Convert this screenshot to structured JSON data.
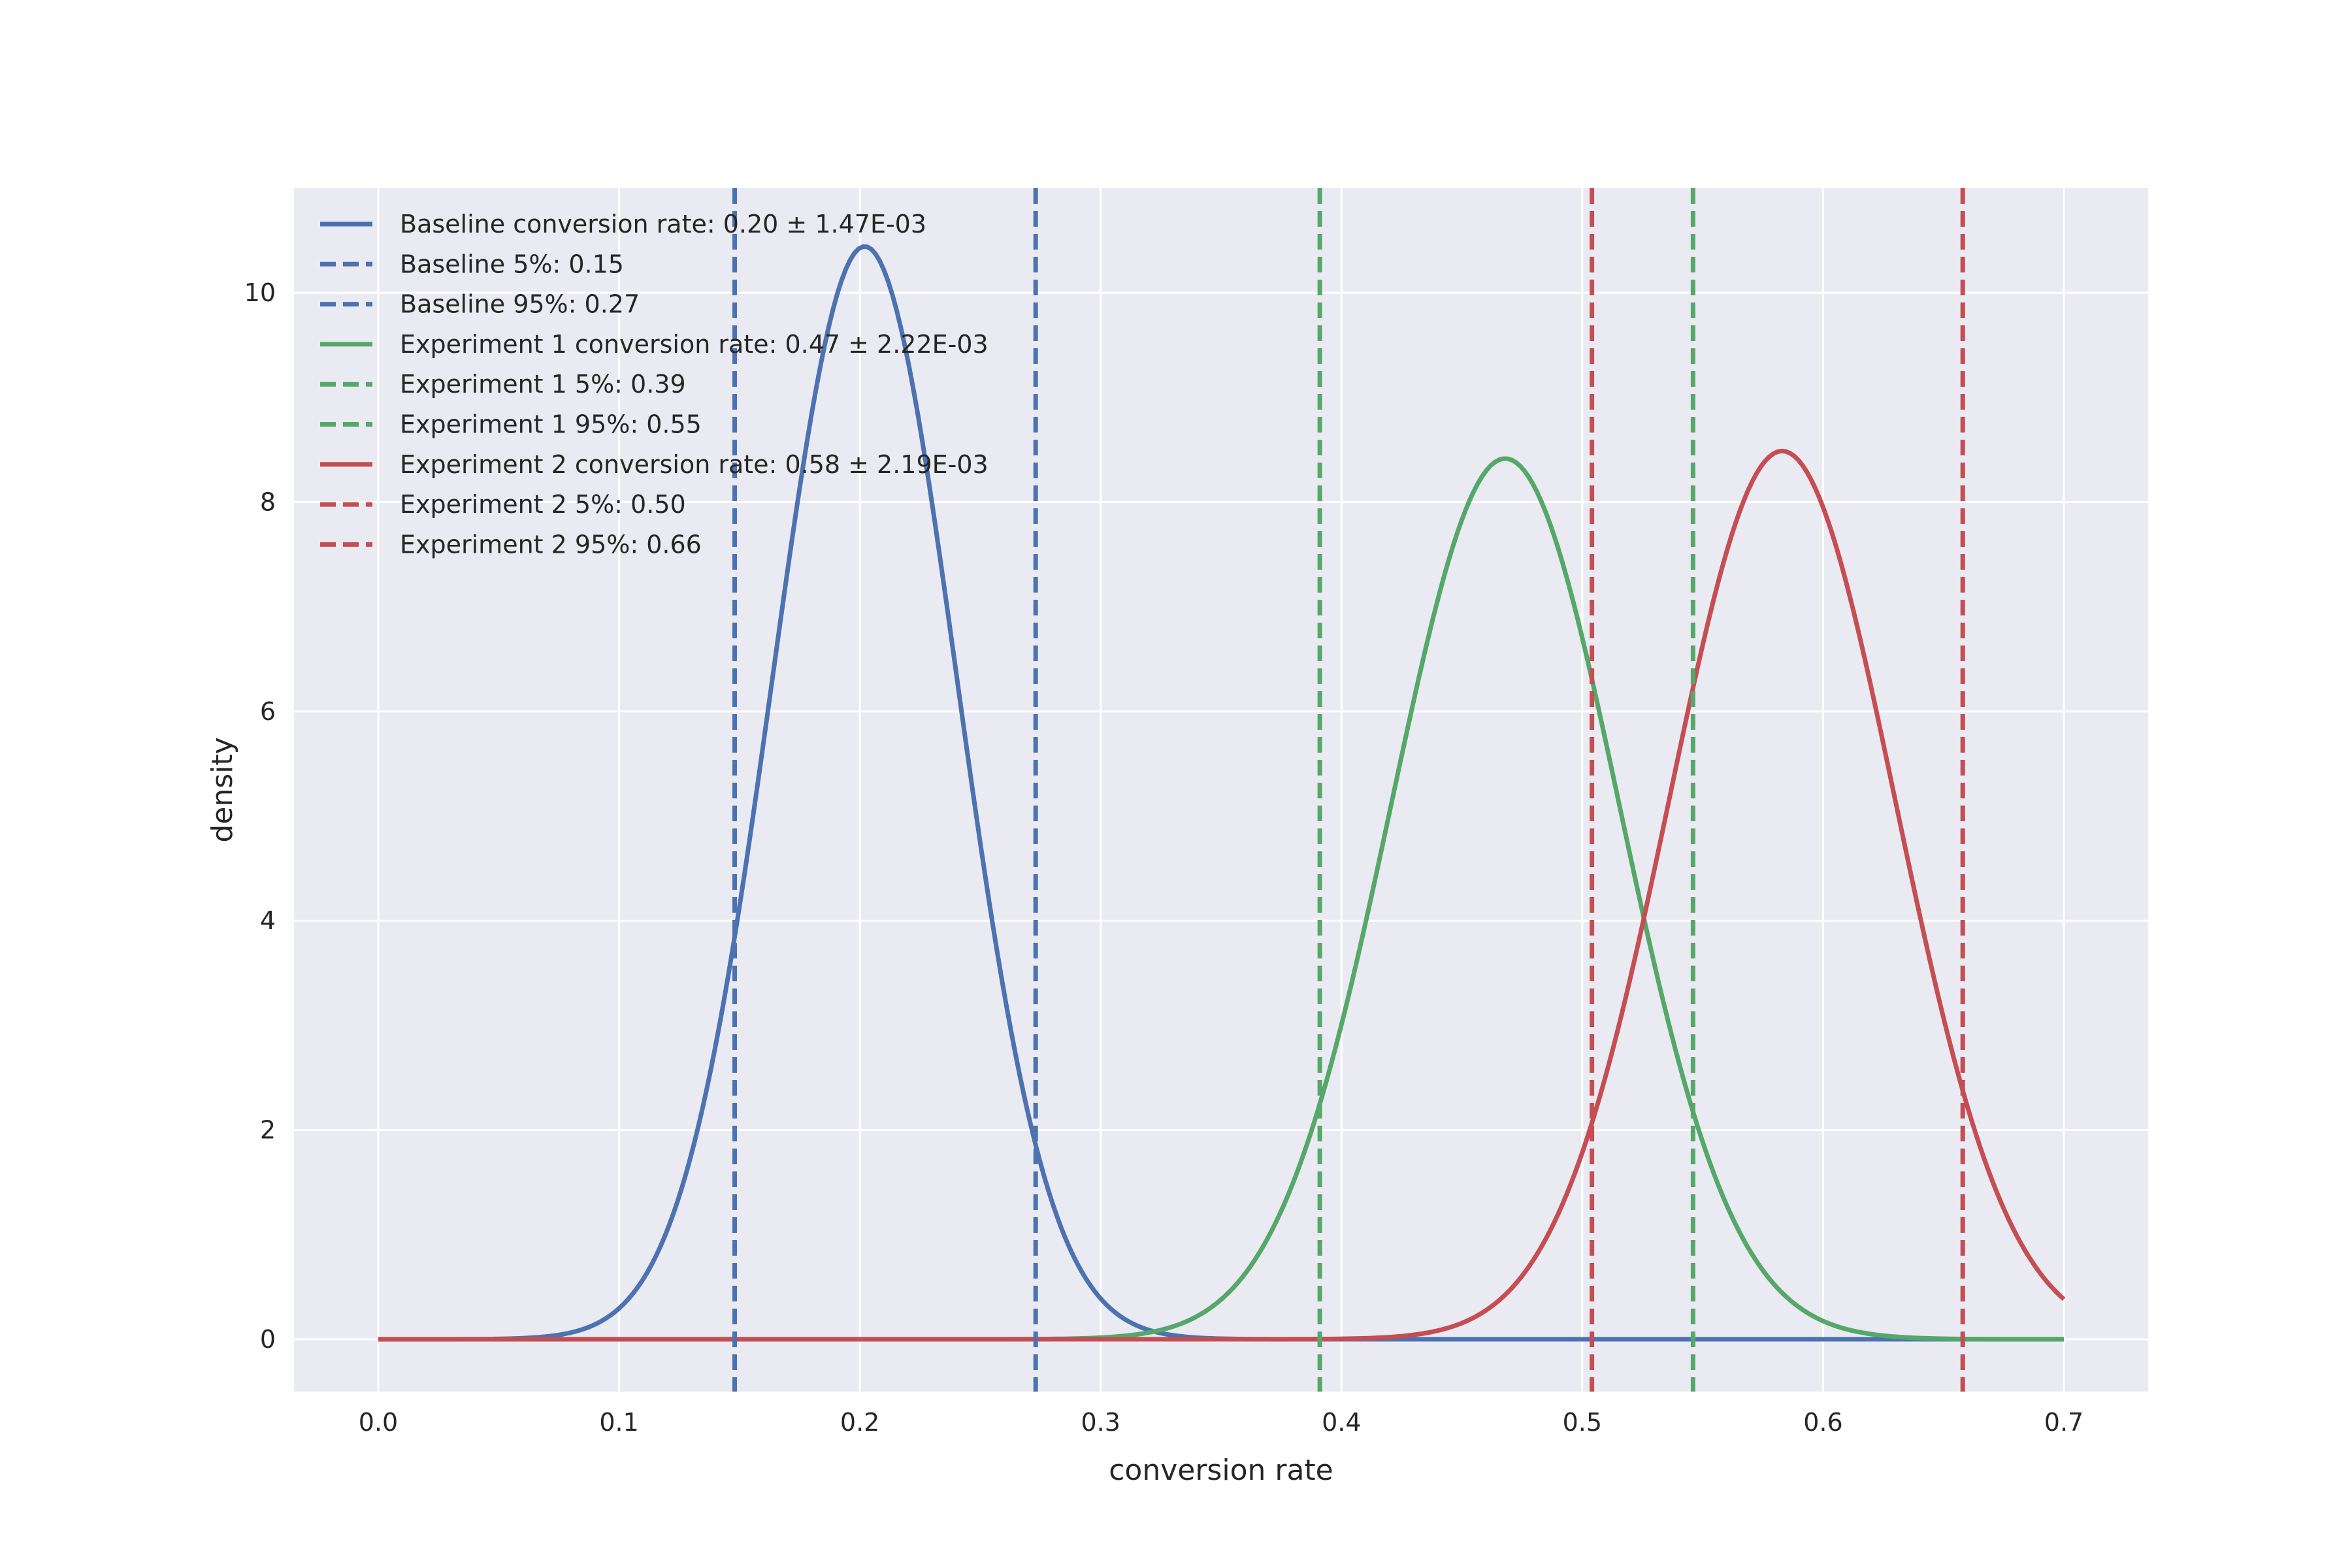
{
  "chart_data": {
    "type": "line",
    "title": "",
    "xlabel": "conversion rate",
    "ylabel": "density",
    "xlim": [
      -0.035,
      0.735
    ],
    "ylim": [
      -0.5,
      11.0
    ],
    "xticks": [
      0.0,
      0.1,
      0.2,
      0.3,
      0.4,
      0.5,
      0.6,
      0.7
    ],
    "xtick_labels": [
      "0.0",
      "0.1",
      "0.2",
      "0.3",
      "0.4",
      "0.5",
      "0.6",
      "0.7"
    ],
    "yticks": [
      0,
      2,
      4,
      6,
      8,
      10
    ],
    "ytick_labels": [
      "0",
      "2",
      "4",
      "6",
      "8",
      "10"
    ],
    "grid": true,
    "background": "#eaeaf2",
    "legend_position": "upper-left",
    "colors": {
      "baseline": "#4c72b0",
      "experiment1": "#55a868",
      "experiment2": "#c44e52"
    },
    "series": [
      {
        "name": "Baseline conversion rate: 0.20 ± 1.47E-03",
        "style": "solid",
        "color": "#4c72b0",
        "distribution": {
          "family": "normal",
          "mean": 0.202,
          "sd": 0.0382
        },
        "x_range": [
          0.0,
          0.7
        ]
      },
      {
        "name": "Experiment 1 conversion rate: 0.47 ± 2.22E-03",
        "style": "solid",
        "color": "#55a868",
        "distribution": {
          "family": "normal",
          "mean": 0.468,
          "sd": 0.0474
        },
        "x_range": [
          0.0,
          0.7
        ]
      },
      {
        "name": "Experiment 2 conversion rate: 0.58 ± 2.19E-03",
        "style": "solid",
        "color": "#c44e52",
        "distribution": {
          "family": "normal",
          "mean": 0.583,
          "sd": 0.047
        },
        "x_range": [
          0.0,
          0.7
        ]
      }
    ],
    "vlines": [
      {
        "name": "Baseline 5%: 0.15",
        "x": 0.148,
        "color": "#4c72b0"
      },
      {
        "name": "Baseline 95%: 0.27",
        "x": 0.273,
        "color": "#4c72b0"
      },
      {
        "name": "Experiment 1 5%: 0.39",
        "x": 0.391,
        "color": "#55a868"
      },
      {
        "name": "Experiment 1 95%: 0.55",
        "x": 0.546,
        "color": "#55a868"
      },
      {
        "name": "Experiment 2 5%: 0.50",
        "x": 0.504,
        "color": "#c44e52"
      },
      {
        "name": "Experiment 2 95%: 0.66",
        "x": 0.658,
        "color": "#c44e52"
      }
    ],
    "legend": [
      {
        "label": "Baseline conversion rate: 0.20 ± 1.47E-03",
        "style": "solid",
        "color": "#4c72b0"
      },
      {
        "label": "Baseline 5%: 0.15",
        "style": "dashed",
        "color": "#4c72b0"
      },
      {
        "label": "Baseline 95%: 0.27",
        "style": "dashed",
        "color": "#4c72b0"
      },
      {
        "label": "Experiment 1 conversion rate: 0.47 ± 2.22E-03",
        "style": "solid",
        "color": "#55a868"
      },
      {
        "label": "Experiment 1 5%: 0.39",
        "style": "dashed",
        "color": "#55a868"
      },
      {
        "label": "Experiment 1 95%: 0.55",
        "style": "dashed",
        "color": "#55a868"
      },
      {
        "label": "Experiment 2 conversion rate: 0.58 ± 2.19E-03",
        "style": "solid",
        "color": "#c44e52"
      },
      {
        "label": "Experiment 2 5%: 0.50",
        "style": "dashed",
        "color": "#c44e52"
      },
      {
        "label": "Experiment 2 95%: 0.66",
        "style": "dashed",
        "color": "#c44e52"
      }
    ]
  }
}
